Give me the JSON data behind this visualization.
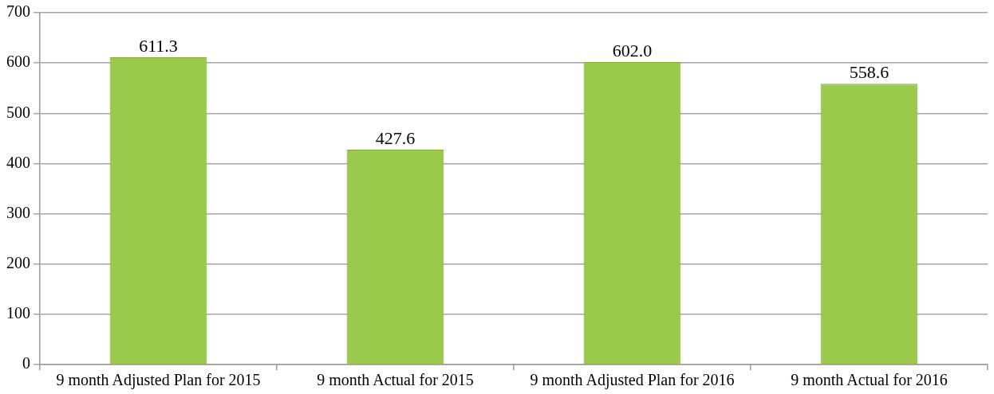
{
  "chart_data": {
    "type": "bar",
    "categories": [
      "9 month Adjusted Plan for 2015",
      "9 month Actual for 2015",
      "9 month Adjusted Plan for 2016",
      "9 month Actual for 2016"
    ],
    "values": [
      611.3,
      427.6,
      602.0,
      558.6
    ],
    "value_labels": [
      "611.3",
      "427.6",
      "602.0",
      "558.6"
    ],
    "color": "#9bc94b",
    "ylim": [
      0,
      700
    ],
    "yticks": [
      0,
      100,
      200,
      300,
      400,
      500,
      600,
      700
    ],
    "grid": "y"
  }
}
